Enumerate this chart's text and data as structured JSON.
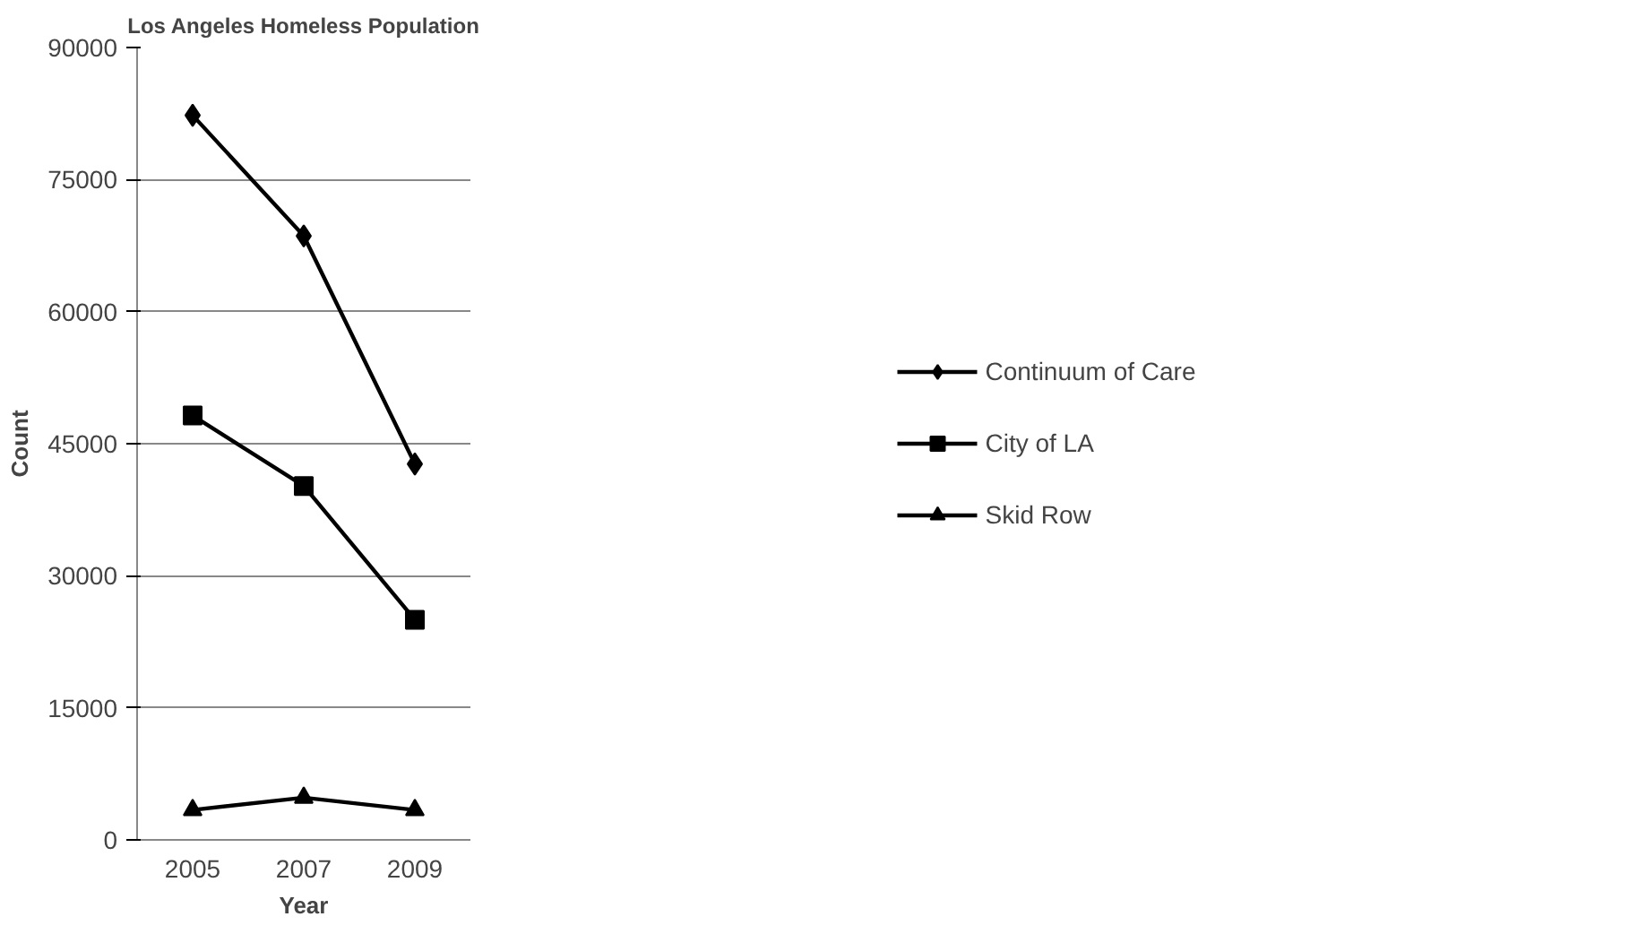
{
  "chart_data": {
    "type": "line",
    "title": "Los Angeles Homeless Population",
    "xlabel": "Year",
    "ylabel": "Count",
    "categories": [
      "2005",
      "2007",
      "2009"
    ],
    "series": [
      {
        "name": "Continuum of Care",
        "color": "#000000",
        "marker": "diamond",
        "values": [
          82300,
          68600,
          42700
        ]
      },
      {
        "name": "City of LA",
        "color": "#000000",
        "marker": "square",
        "values": [
          48200,
          40200,
          25000
        ]
      },
      {
        "name": "Skid Row",
        "color": "#000000",
        "marker": "triangle",
        "values": [
          3400,
          4800,
          3400
        ]
      }
    ],
    "ylim": [
      0,
      90000
    ],
    "yticks": [
      0,
      15000,
      30000,
      45000,
      60000,
      75000,
      90000
    ],
    "grid": "y",
    "legend": "right",
    "line_style": "solid"
  }
}
